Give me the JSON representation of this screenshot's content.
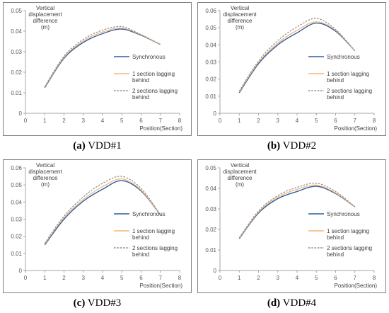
{
  "colors": {
    "synchronous": "#2e5f9f",
    "lag1": "#f3b57c",
    "lag2": "#8c8c8c",
    "frame": "#7f7f7f"
  },
  "chart_data": [
    {
      "type": "line",
      "caption_letter": "(a)",
      "caption_text": " VDD#1",
      "ylabel": "Vertical displacement difference (m)",
      "ylabel_lines": [
        "Vertical",
        "displacement",
        "difference",
        "(m)"
      ],
      "xlabel": "Position(Section)",
      "xlim": [
        0,
        8
      ],
      "ylim": [
        0,
        0.05
      ],
      "xticks": [
        0,
        1,
        2,
        3,
        4,
        5,
        6,
        7,
        8
      ],
      "yticks": [
        0,
        0.01,
        0.02,
        0.03,
        0.04,
        0.05
      ],
      "ytick_labels": [
        "0",
        "0.01",
        "0.02",
        "0.03",
        "0.04",
        "0.05"
      ],
      "grid": false,
      "legend_position": "right",
      "series": [
        {
          "name": "Synchronous",
          "legend_lines": [
            "Synchronous"
          ],
          "style": "solid",
          "x": [
            1,
            2,
            3,
            4,
            5,
            6,
            7
          ],
          "y": [
            0.0125,
            0.0268,
            0.0345,
            0.0388,
            0.041,
            0.038,
            0.0335
          ]
        },
        {
          "name": "1 section lagging behind",
          "legend_lines": [
            "1 section lagging",
            "behind"
          ],
          "style": "solid",
          "x": [
            1,
            2,
            3,
            4,
            5,
            6,
            7
          ],
          "y": [
            0.0128,
            0.0273,
            0.0352,
            0.0396,
            0.0415,
            0.0382,
            0.0335
          ]
        },
        {
          "name": "2 sections lagging behind",
          "legend_lines": [
            "2 sections lagging",
            "behind"
          ],
          "style": "dashed",
          "x": [
            1,
            2,
            3,
            4,
            5,
            6,
            7
          ],
          "y": [
            0.013,
            0.0278,
            0.036,
            0.0405,
            0.0422,
            0.0383,
            0.0335
          ]
        }
      ]
    },
    {
      "type": "line",
      "caption_letter": "(b)",
      "caption_text": " VDD#2",
      "ylabel": "Vertical displacement difference (m)",
      "ylabel_lines": [
        "Vertical",
        "displacement",
        "difference",
        "(m)"
      ],
      "xlabel": "Position(Section)",
      "xlim": [
        0,
        8
      ],
      "ylim": [
        0,
        0.06
      ],
      "xticks": [
        0,
        1,
        2,
        3,
        4,
        5,
        6,
        7,
        8
      ],
      "yticks": [
        0,
        0.01,
        0.02,
        0.03,
        0.04,
        0.05,
        0.06
      ],
      "ytick_labels": [
        "0",
        "0.01",
        "0.02",
        "0.03",
        "0.04",
        "0.05",
        "0.06"
      ],
      "grid": false,
      "legend_position": "right",
      "series": [
        {
          "name": "Synchronous",
          "legend_lines": [
            "Synchronous"
          ],
          "style": "solid",
          "x": [
            1,
            2,
            3,
            4,
            5,
            6,
            7
          ],
          "y": [
            0.012,
            0.029,
            0.04,
            0.047,
            0.0527,
            0.048,
            0.0365
          ]
        },
        {
          "name": "1 section lagging behind",
          "legend_lines": [
            "1 section lagging",
            "behind"
          ],
          "style": "solid",
          "x": [
            1,
            2,
            3,
            4,
            5,
            6,
            7
          ],
          "y": [
            0.0125,
            0.0298,
            0.041,
            0.0485,
            0.0535,
            0.0485,
            0.0365
          ]
        },
        {
          "name": "2 sections lagging behind",
          "legend_lines": [
            "2 sections lagging",
            "behind"
          ],
          "style": "dashed",
          "x": [
            1,
            2,
            3,
            4,
            5,
            6,
            7
          ],
          "y": [
            0.013,
            0.0305,
            0.0425,
            0.0505,
            0.0555,
            0.049,
            0.0365
          ]
        }
      ]
    },
    {
      "type": "line",
      "caption_letter": "(c)",
      "caption_text": " VDD#3",
      "ylabel": "Vertical displacement difference (m)",
      "ylabel_lines": [
        "Vertical",
        "displacement",
        "difference",
        "(m)"
      ],
      "xlabel": "Position(Section)",
      "xlim": [
        0,
        8
      ],
      "ylim": [
        0,
        0.06
      ],
      "xticks": [
        0,
        1,
        2,
        3,
        4,
        5,
        6,
        7,
        8
      ],
      "yticks": [
        0,
        0.01,
        0.02,
        0.03,
        0.04,
        0.05,
        0.06
      ],
      "ytick_labels": [
        "0",
        "0.01",
        "0.02",
        "0.03",
        "0.04",
        "0.05",
        "0.06"
      ],
      "grid": false,
      "legend_position": "right",
      "series": [
        {
          "name": "Synchronous",
          "legend_lines": [
            "Synchronous"
          ],
          "style": "solid",
          "x": [
            1,
            2,
            3,
            4,
            5,
            6,
            7
          ],
          "y": [
            0.015,
            0.03,
            0.0405,
            0.0475,
            0.0525,
            0.0465,
            0.0325
          ]
        },
        {
          "name": "1 section lagging behind",
          "legend_lines": [
            "1 section lagging",
            "behind"
          ],
          "style": "solid",
          "x": [
            1,
            2,
            3,
            4,
            5,
            6,
            7
          ],
          "y": [
            0.0155,
            0.031,
            0.0415,
            0.049,
            0.0535,
            0.047,
            0.0325
          ]
        },
        {
          "name": "2 sections lagging behind",
          "legend_lines": [
            "2 sections lagging",
            "behind"
          ],
          "style": "dashed",
          "x": [
            1,
            2,
            3,
            4,
            5,
            6,
            7
          ],
          "y": [
            0.016,
            0.0318,
            0.043,
            0.051,
            0.055,
            0.048,
            0.0325
          ]
        }
      ]
    },
    {
      "type": "line",
      "caption_letter": "(d)",
      "caption_text": " VDD#4",
      "ylabel": "Vertical displacement difference (m)",
      "ylabel_lines": [
        "Vertical",
        "displacement",
        "difference",
        "(m)"
      ],
      "xlabel": "Position(Section)",
      "xlim": [
        0,
        8
      ],
      "ylim": [
        0,
        0.05
      ],
      "xticks": [
        0,
        1,
        2,
        3,
        4,
        5,
        6,
        7,
        8
      ],
      "yticks": [
        0,
        0.01,
        0.02,
        0.03,
        0.04,
        0.05
      ],
      "ytick_labels": [
        "0",
        "0.01",
        "0.02",
        "0.03",
        "0.04",
        "0.05"
      ],
      "grid": false,
      "legend_position": "right",
      "series": [
        {
          "name": "Synchronous",
          "legend_lines": [
            "Synchronous"
          ],
          "style": "solid",
          "x": [
            1,
            2,
            3,
            4,
            5,
            6,
            7
          ],
          "y": [
            0.0155,
            0.028,
            0.035,
            0.0385,
            0.041,
            0.0375,
            0.031
          ]
        },
        {
          "name": "1 section lagging behind",
          "legend_lines": [
            "1 section lagging",
            "behind"
          ],
          "style": "solid",
          "x": [
            1,
            2,
            3,
            4,
            5,
            6,
            7
          ],
          "y": [
            0.0158,
            0.0285,
            0.0358,
            0.0395,
            0.0416,
            0.0378,
            0.031
          ]
        },
        {
          "name": "2 sections lagging behind",
          "legend_lines": [
            "2 sections lagging",
            "behind"
          ],
          "style": "dashed",
          "x": [
            1,
            2,
            3,
            4,
            5,
            6,
            7
          ],
          "y": [
            0.016,
            0.029,
            0.0365,
            0.0405,
            0.0425,
            0.0385,
            0.031
          ]
        }
      ]
    }
  ]
}
